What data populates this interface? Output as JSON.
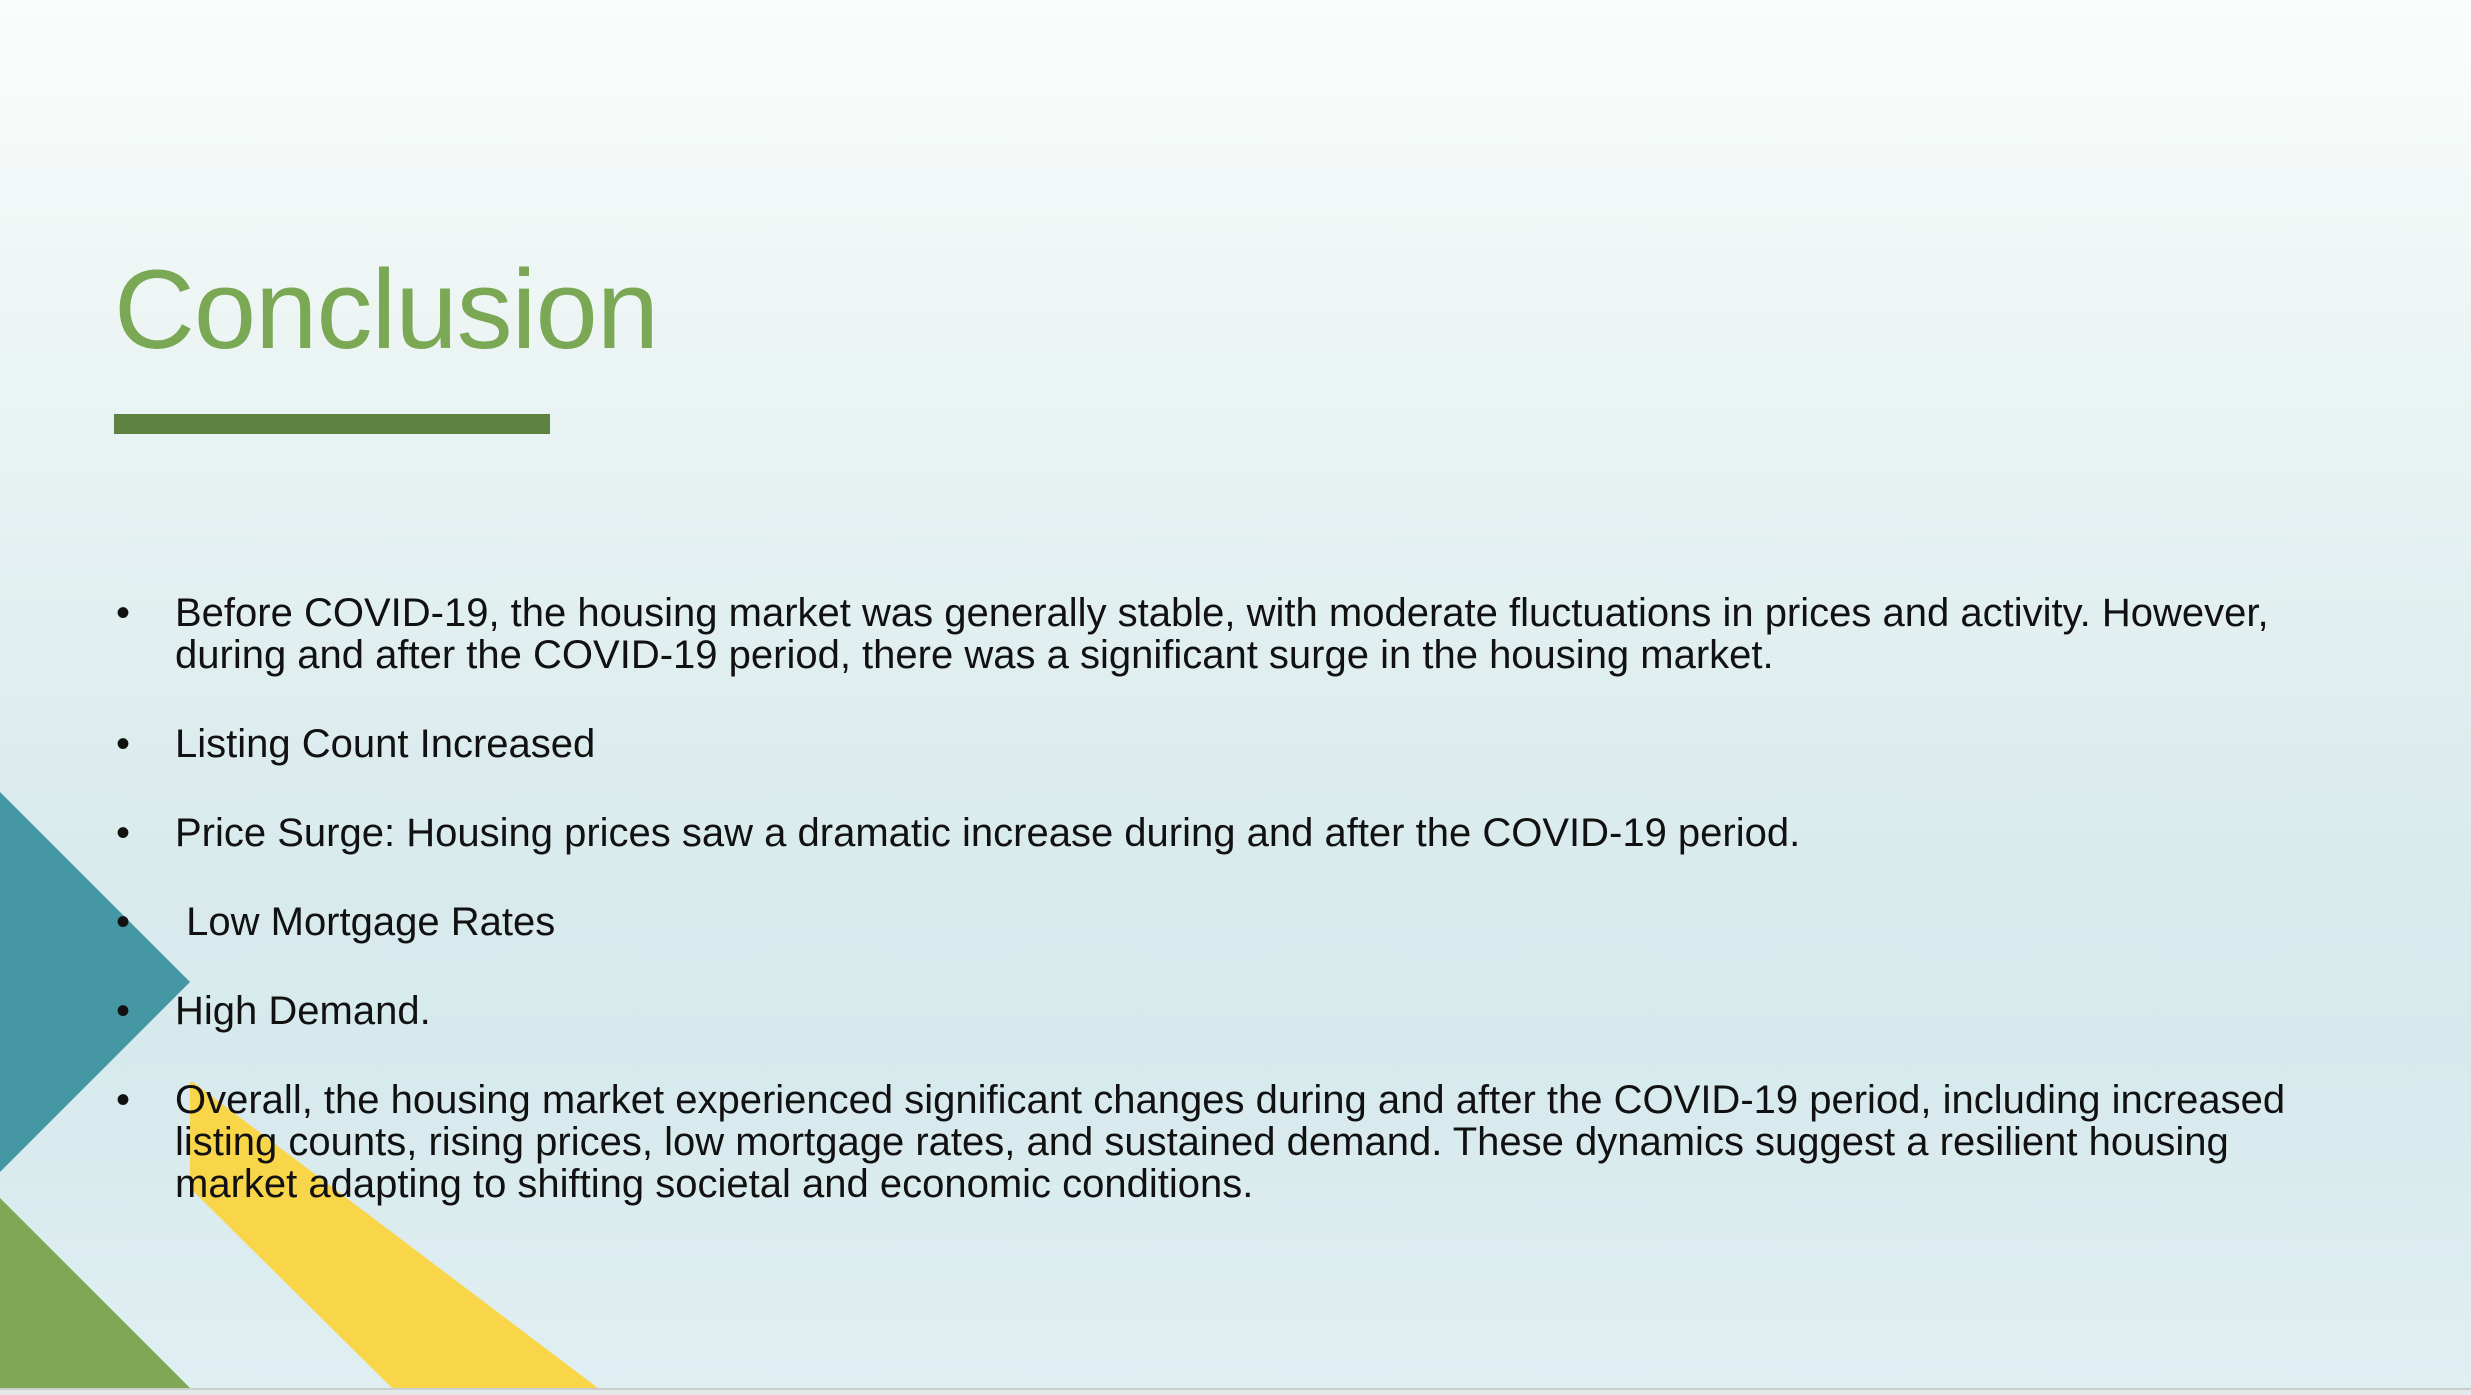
{
  "slide": {
    "title": "Conclusion",
    "bullets": [
      "Before COVID-19, the housing market was generally stable, with moderate fluctuations in prices and activity. However, during and after the COVID-19 period, there was a significant surge in the housing market.",
      "Listing Count Increased",
      "Price Surge: Housing prices saw a dramatic increase during and after the COVID-19 period.",
      " Low Mortgage Rates",
      "High Demand.",
      "Overall, the housing market experienced significant changes during and after the COVID-19 period, including increased listing counts, rising prices, low mortgage rates, and sustained demand. These dynamics suggest a resilient housing market adapting to shifting societal and economic conditions."
    ],
    "bullet_symbol": "•"
  },
  "colors": {
    "title": "#7aa855",
    "underline": "#5e8341",
    "teal_triangle": "#4597a4",
    "yellow_band": "#f9d54a",
    "green_triangle": "#7ea856",
    "text": "#111111"
  }
}
